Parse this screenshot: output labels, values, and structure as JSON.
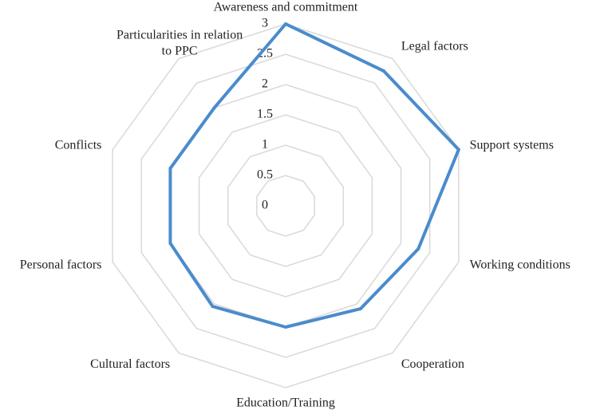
{
  "chart_data": {
    "type": "radar",
    "categories": [
      "Awareness and commitment",
      "Legal factors",
      "Support systems",
      "Working conditions",
      "Cooperation",
      "Education/Training",
      "Cultural factors",
      "Personal factors",
      "Conflicts",
      "Particularities in relation to PPC"
    ],
    "values": [
      3,
      2.75,
      3,
      2.3,
      2.1,
      2.0,
      2.05,
      2.0,
      2.0,
      2.0
    ],
    "color": "#4a8ccc",
    "rlim": [
      0,
      3
    ],
    "rticks": [
      0,
      0.5,
      1,
      1.5,
      2,
      2.5,
      3
    ],
    "grid": true
  }
}
